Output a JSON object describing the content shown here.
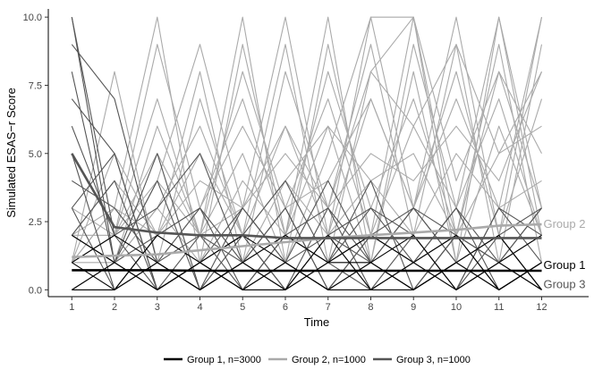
{
  "chart_data": {
    "type": "line",
    "title": "",
    "xlabel": "Time",
    "ylabel": "Simulated ESAS−r Score",
    "x": [
      1,
      2,
      3,
      4,
      5,
      6,
      7,
      8,
      9,
      10,
      11,
      12
    ],
    "x_tick_labels": [
      "1",
      "2",
      "3",
      "4",
      "5",
      "6",
      "7",
      "8",
      "9",
      "10",
      "11",
      "12"
    ],
    "xlim": [
      0.45,
      13.1
    ],
    "ylim": [
      -0.25,
      10.3
    ],
    "y_ticks": [
      0,
      2.5,
      5,
      7.5,
      10
    ],
    "y_tick_labels": [
      "0.0",
      "2.5",
      "5.0",
      "7.5",
      "10.0"
    ],
    "grid": false,
    "legend_position": "bottom",
    "colors": {
      "group1": "#000000",
      "group2": "#aaaaaa",
      "group3": "#555555"
    },
    "series": [
      {
        "name": "Group 1, n=3000",
        "end_label": "Group 1",
        "color": "#000000",
        "mean": [
          0.72,
          0.72,
          0.72,
          0.7,
          0.7,
          0.7,
          0.7,
          0.7,
          0.7,
          0.7,
          0.7,
          0.7
        ]
      },
      {
        "name": "Group 2, n=1000",
        "end_label": "Group 2",
        "color": "#aaaaaa",
        "mean": [
          1.2,
          1.25,
          1.3,
          1.45,
          1.6,
          1.75,
          1.9,
          2.0,
          2.1,
          2.2,
          2.35,
          2.4
        ]
      },
      {
        "name": "Group 3, n=1000",
        "end_label": "Group 3",
        "color": "#555555",
        "mean": [
          5.0,
          2.3,
          2.1,
          2.0,
          2.0,
          1.9,
          1.9,
          1.9,
          1.9,
          1.9,
          1.9,
          1.9
        ]
      }
    ],
    "individual_trajectories": [
      {
        "group": "Group 2",
        "values": [
          1,
          8,
          1,
          7,
          2,
          9,
          1,
          8,
          10,
          2,
          9,
          1
        ]
      },
      {
        "group": "Group 2",
        "values": [
          2,
          3,
          10,
          1,
          9,
          2,
          10,
          1,
          9,
          3,
          10,
          2
        ]
      },
      {
        "group": "Group 2",
        "values": [
          1,
          2,
          4,
          9,
          3,
          10,
          2,
          10,
          3,
          10,
          2,
          10
        ]
      },
      {
        "group": "Group 2",
        "values": [
          2,
          1,
          6,
          2,
          10,
          1,
          9,
          2,
          10,
          1,
          10,
          3
        ]
      },
      {
        "group": "Group 2",
        "values": [
          1,
          5,
          2,
          8,
          1,
          8,
          3,
          9,
          2,
          9,
          1,
          9
        ]
      },
      {
        "group": "Group 2",
        "values": [
          3,
          2,
          9,
          3,
          7,
          2,
          8,
          3,
          7,
          2,
          8,
          3
        ]
      },
      {
        "group": "Group 2",
        "values": [
          2,
          1,
          3,
          6,
          2,
          6,
          2,
          7,
          3,
          8,
          2,
          7
        ]
      },
      {
        "group": "Group 2",
        "values": [
          1,
          3,
          1,
          3,
          6,
          3,
          7,
          2,
          6,
          3,
          7,
          2
        ]
      },
      {
        "group": "Group 2",
        "values": [
          2,
          2,
          7,
          2,
          5,
          1,
          5,
          10,
          10,
          4,
          8,
          5
        ]
      },
      {
        "group": "Group 2",
        "values": [
          1,
          1,
          2,
          4,
          3,
          5,
          3,
          5,
          4,
          6,
          4,
          8
        ]
      },
      {
        "group": "Group 2",
        "values": [
          2,
          4,
          2,
          5,
          2,
          4,
          6,
          4,
          5,
          2,
          5,
          6
        ]
      },
      {
        "group": "Group 2",
        "values": [
          1,
          2,
          5,
          2,
          8,
          3,
          4,
          7,
          3,
          7,
          3,
          10
        ]
      },
      {
        "group": "Group 2",
        "values": [
          0,
          1,
          3,
          1,
          4,
          2,
          6,
          1,
          8,
          1,
          6,
          2
        ]
      },
      {
        "group": "Group 2",
        "values": [
          1,
          3,
          2,
          3,
          1,
          4,
          2,
          4,
          2,
          5,
          3,
          4
        ]
      },
      {
        "group": "Group 2",
        "values": [
          2,
          1,
          4,
          2,
          3,
          6,
          3,
          8,
          6,
          9,
          5,
          8
        ]
      },
      {
        "group": "Group 3",
        "values": [
          10,
          1,
          2,
          1,
          3,
          1,
          2,
          3,
          1,
          3,
          1,
          2
        ]
      },
      {
        "group": "Group 3",
        "values": [
          10,
          2,
          0,
          2,
          1,
          3,
          0,
          2,
          3,
          1,
          2,
          0
        ]
      },
      {
        "group": "Group 3",
        "values": [
          9,
          7,
          1,
          3,
          0,
          2,
          1,
          4,
          0,
          2,
          1,
          3
        ]
      },
      {
        "group": "Group 3",
        "values": [
          8,
          1,
          5,
          0,
          2,
          0,
          3,
          0,
          2,
          0,
          3,
          1
        ]
      },
      {
        "group": "Group 3",
        "values": [
          7,
          5,
          0,
          1,
          2,
          4,
          1,
          2,
          1,
          3,
          0,
          1
        ]
      },
      {
        "group": "Group 3",
        "values": [
          6,
          2,
          3,
          5,
          1,
          0,
          2,
          1,
          3,
          1,
          2,
          3
        ]
      },
      {
        "group": "Group 3",
        "values": [
          5,
          0,
          1,
          0,
          3,
          1,
          4,
          1,
          0,
          2,
          1,
          0
        ]
      },
      {
        "group": "Group 3",
        "values": [
          4,
          3,
          1,
          2,
          0,
          2,
          1,
          3,
          2,
          0,
          3,
          2
        ]
      },
      {
        "group": "Group 3",
        "values": [
          3,
          5,
          0,
          1,
          2,
          0,
          1,
          0,
          1,
          2,
          0,
          1
        ]
      },
      {
        "group": "Group 3",
        "values": [
          2,
          1,
          4,
          0,
          1,
          3,
          0,
          2,
          1,
          0,
          2,
          0
        ]
      },
      {
        "group": "Group 3",
        "values": [
          3,
          0,
          2,
          3,
          1,
          2,
          3,
          1,
          3,
          2,
          1,
          3
        ]
      },
      {
        "group": "Group 3",
        "values": [
          2,
          4,
          0,
          1,
          0,
          1,
          0,
          1,
          0,
          1,
          0,
          1
        ]
      },
      {
        "group": "Group 1",
        "values": [
          1,
          0,
          1,
          0,
          1,
          0,
          1,
          1,
          0,
          1,
          0,
          1
        ]
      },
      {
        "group": "Group 1",
        "values": [
          0,
          1,
          0,
          1,
          0,
          1,
          0,
          0,
          1,
          0,
          1,
          0
        ]
      },
      {
        "group": "Group 1",
        "values": [
          2,
          1,
          0,
          1,
          2,
          1,
          0,
          1,
          2,
          0,
          1,
          2
        ]
      },
      {
        "group": "Group 1",
        "values": [
          1,
          2,
          1,
          0,
          1,
          2,
          1,
          2,
          1,
          2,
          0,
          1
        ]
      },
      {
        "group": "Group 1",
        "values": [
          0,
          0,
          2,
          1,
          0,
          0,
          2,
          0,
          0,
          1,
          2,
          0
        ]
      }
    ]
  }
}
